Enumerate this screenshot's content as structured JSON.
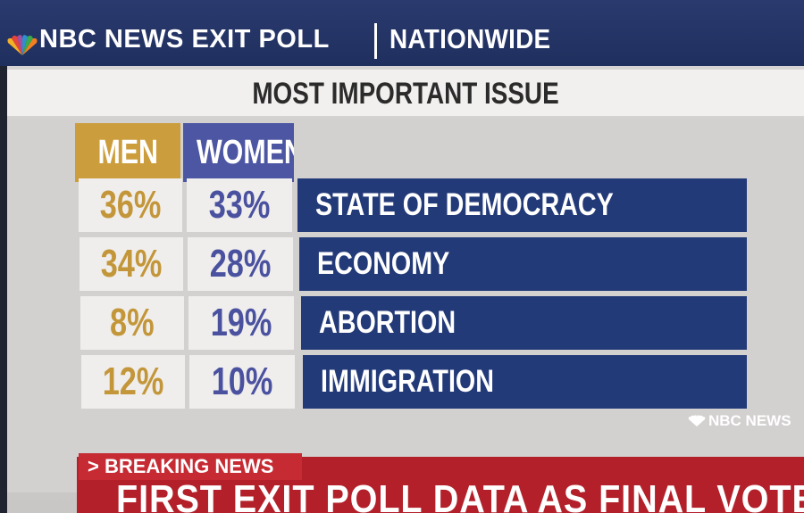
{
  "header": {
    "brand": "NBC NEWS EXIT POLL",
    "region": "NATIONWIDE"
  },
  "colors": {
    "men": "#cc9d3c",
    "women": "#4c56a2",
    "issue_bar": "#233a78",
    "ticker": "#b3202a"
  },
  "chart_data": {
    "type": "table",
    "title": "MOST IMPORTANT ISSUE",
    "columns": [
      "MEN",
      "WOMEN"
    ],
    "rows": [
      {
        "issue": "STATE OF DEMOCRACY",
        "men": "36%",
        "women": "33%"
      },
      {
        "issue": "ECONOMY",
        "men": "34%",
        "women": "28%"
      },
      {
        "issue": "ABORTION",
        "men": "8%",
        "women": "19%"
      },
      {
        "issue": "IMMIGRATION",
        "men": "12%",
        "women": "10%"
      }
    ]
  },
  "watermark": "NBC NEWS",
  "ticker": {
    "label": "> BREAKING NEWS",
    "text": "FIRST EXIT POLL DATA AS FINAL VOTES"
  }
}
